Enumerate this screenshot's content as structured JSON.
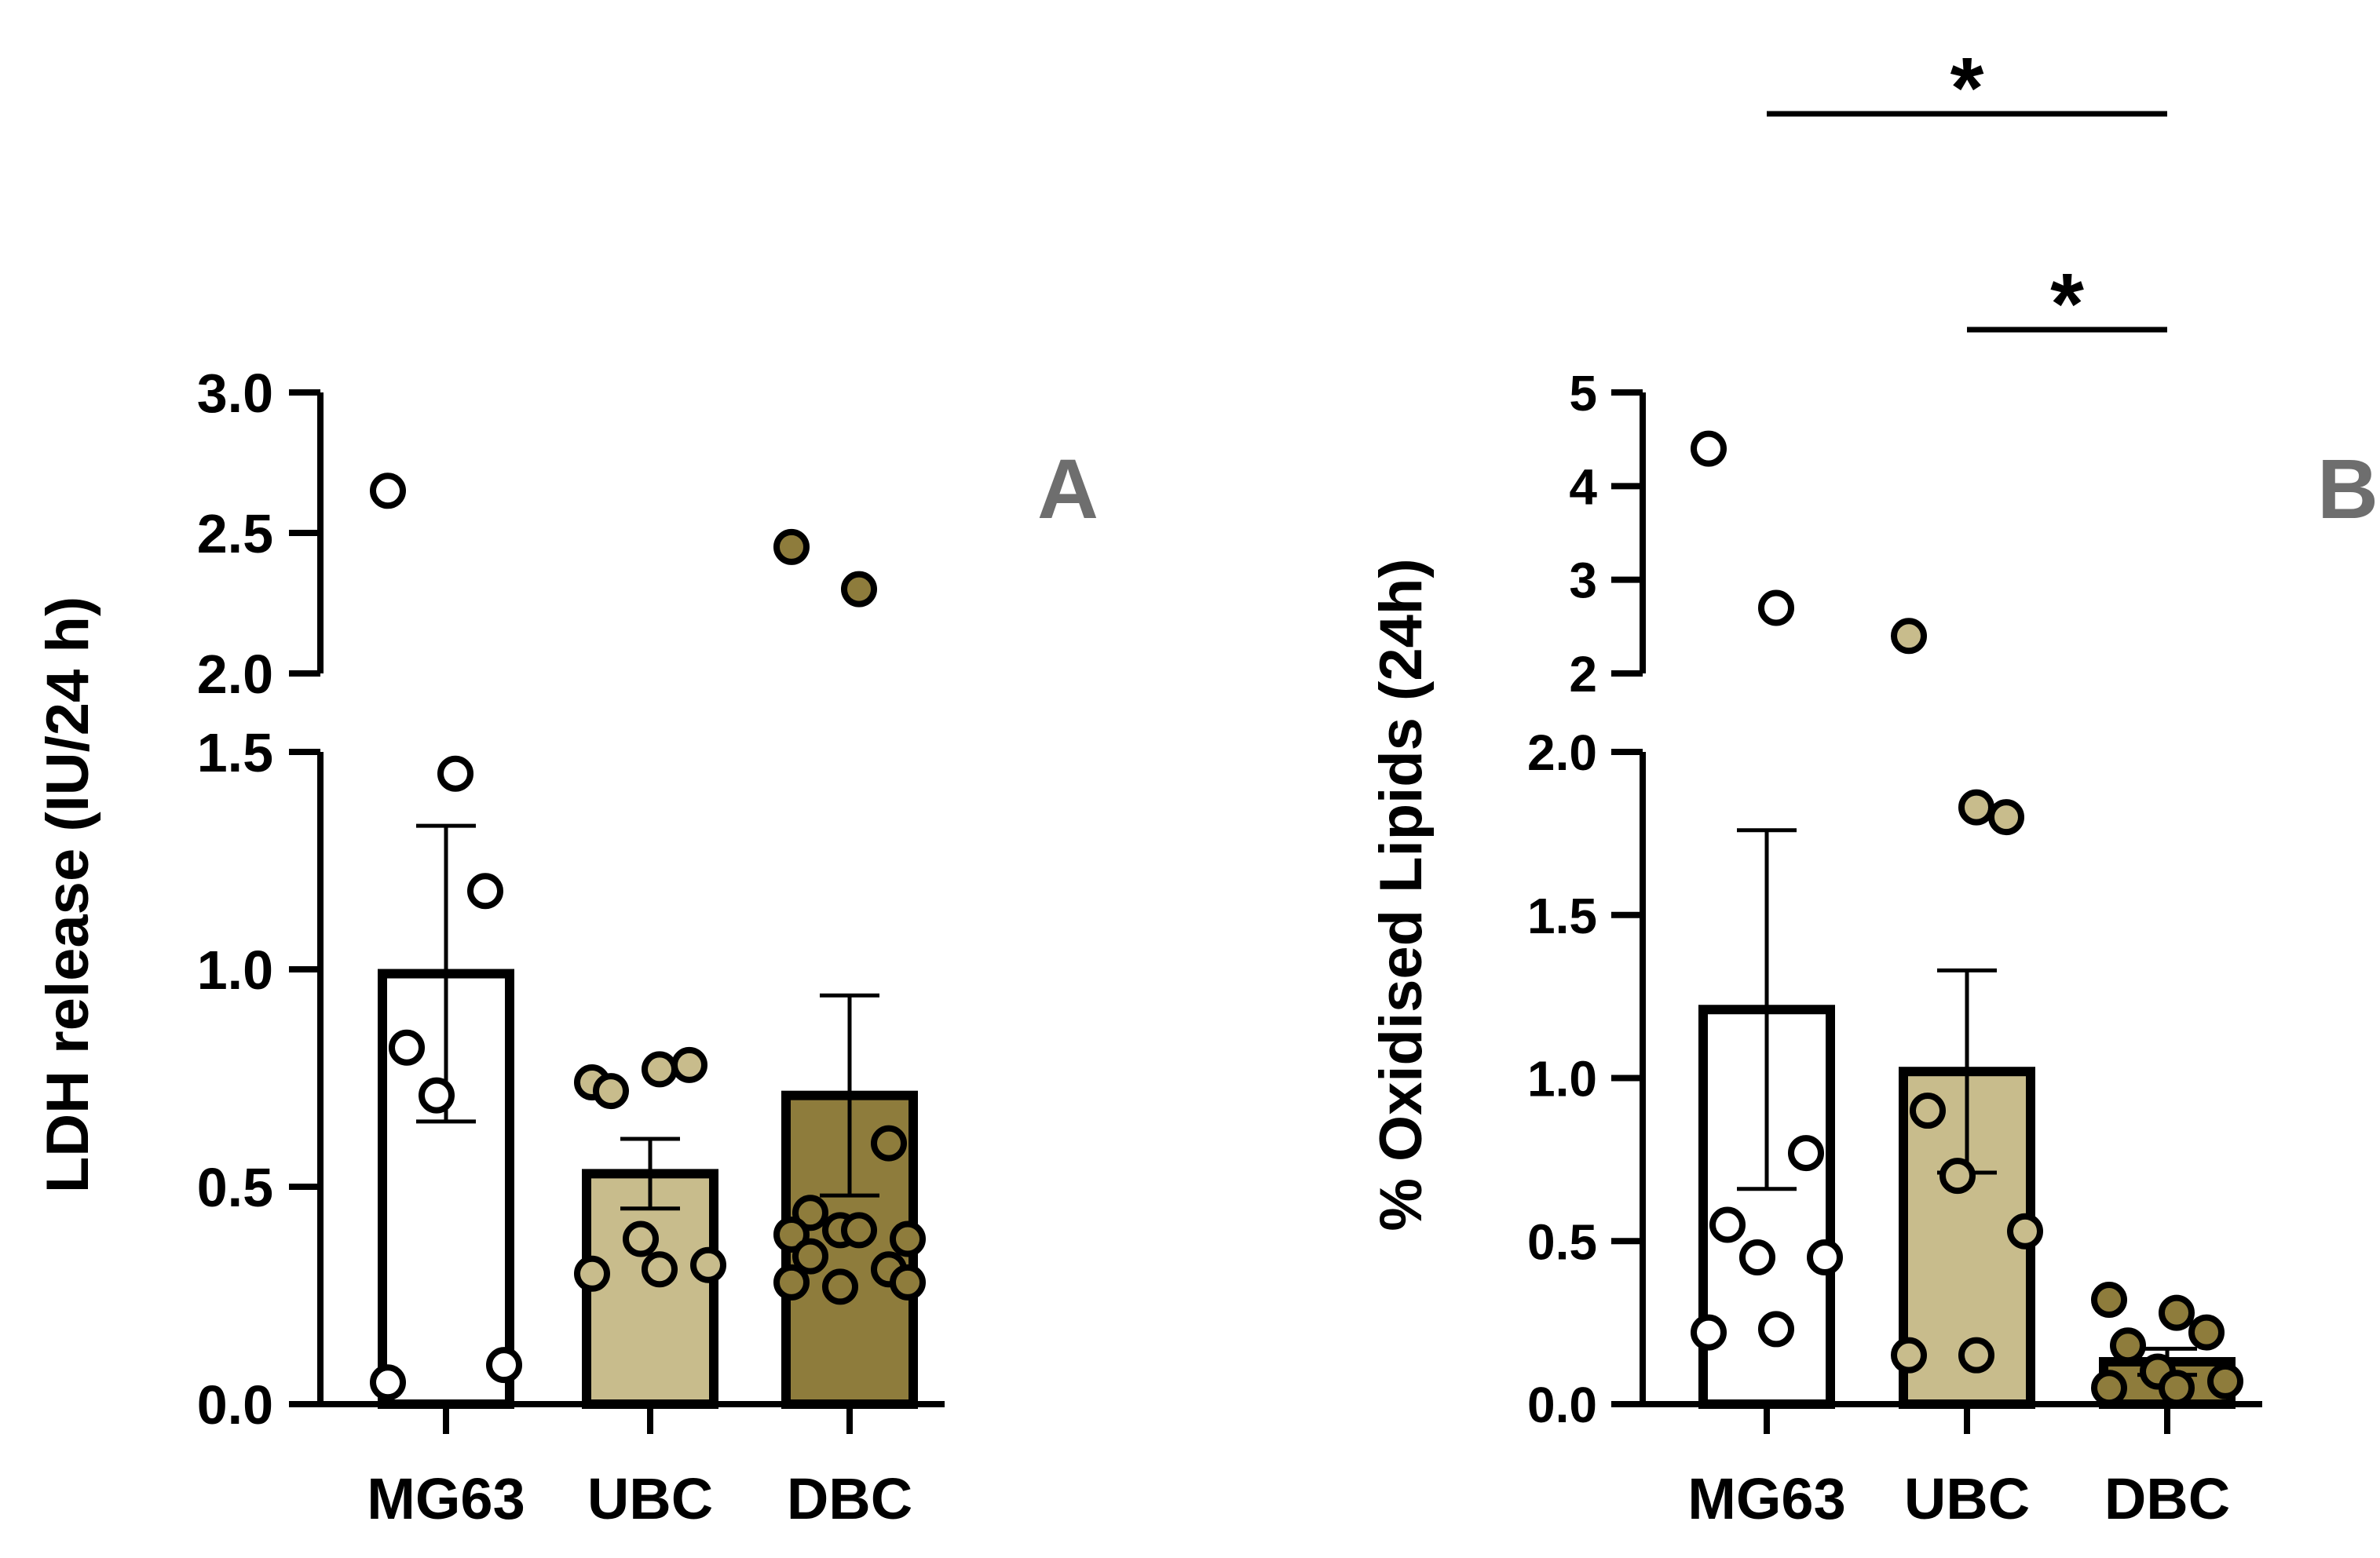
{
  "chart_data": [
    {
      "type": "bar",
      "panel_label": "A",
      "ylabel": "LDH release (IU/24 h)",
      "categories": [
        "MG63",
        "UBC",
        "DBC"
      ],
      "axis_break": {
        "lower_range": [
          0,
          1.5
        ],
        "upper_range": [
          2.0,
          3.0
        ]
      },
      "y_ticks_lower": [
        "0.0",
        "0.5",
        "1.0",
        "1.5"
      ],
      "y_ticks_upper": [
        "2.0",
        "2.5",
        "3.0"
      ],
      "bars": [
        {
          "category": "MG63",
          "mean": 0.99,
          "sem": 0.34,
          "color": "#ffffff",
          "points": [
            2.65,
            1.45,
            1.18,
            0.82,
            0.71,
            0.09,
            0.05
          ]
        },
        {
          "category": "UBC",
          "mean": 0.53,
          "sem": 0.08,
          "color": "#c8bc8c",
          "points": [
            0.74,
            0.77,
            0.78,
            0.72,
            0.38,
            0.32,
            0.3,
            0.31
          ]
        },
        {
          "category": "DBC",
          "mean": 0.71,
          "sem": 0.23,
          "color": "#8e7c3c",
          "points": [
            2.45,
            2.3,
            0.6,
            0.44,
            0.4,
            0.38,
            0.39,
            0.4,
            0.31,
            0.34,
            0.27,
            0.28,
            0.28
          ]
        }
      ],
      "significance": []
    },
    {
      "type": "bar",
      "panel_label": "B",
      "ylabel": "% Oxidised Lipids (24h)",
      "categories": [
        "MG63",
        "UBC",
        "DBC"
      ],
      "axis_break": {
        "lower_range": [
          0,
          2.0
        ],
        "upper_range": [
          2,
          5
        ]
      },
      "y_ticks_lower": [
        "0.0",
        "0.5",
        "1.0",
        "1.5",
        "2.0"
      ],
      "y_ticks_upper": [
        "2",
        "3",
        "4",
        "5"
      ],
      "bars": [
        {
          "category": "MG63",
          "mean": 1.21,
          "sem": 0.55,
          "color": "#ffffff",
          "points": [
            4.4,
            2.7,
            0.77,
            0.55,
            0.45,
            0.45,
            0.22,
            0.23
          ]
        },
        {
          "category": "UBC",
          "mean": 1.02,
          "sem": 0.31,
          "color": "#c8bc8c",
          "points": [
            2.4,
            1.83,
            1.8,
            0.9,
            0.7,
            0.53,
            0.15,
            0.15
          ]
        },
        {
          "category": "DBC",
          "mean": 0.13,
          "sem": 0.04,
          "color": "#8e7c3c",
          "points": [
            0.32,
            0.28,
            0.22,
            0.18,
            0.1,
            0.07,
            0.05,
            0.05
          ]
        }
      ],
      "significance": [
        {
          "from": "MG63",
          "to": "DBC",
          "label": "*"
        },
        {
          "from": "UBC",
          "to": "DBC",
          "label": "*"
        }
      ]
    }
  ]
}
